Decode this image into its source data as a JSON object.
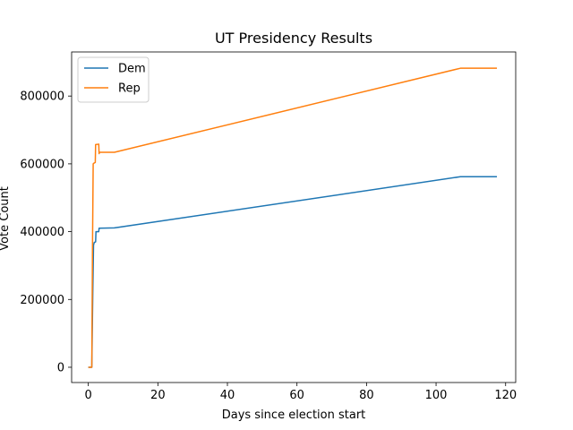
{
  "chart_data": {
    "type": "line",
    "title": "UT Presidency Results",
    "xlabel": "Days since election start",
    "ylabel": "Vote Count",
    "xlim": [
      -4.8,
      122.9
    ],
    "ylim": [
      -45000,
      930000
    ],
    "xticks": [
      0,
      20,
      40,
      60,
      80,
      100,
      120
    ],
    "yticks": [
      0,
      200000,
      400000,
      600000,
      800000
    ],
    "grid": false,
    "legend_position": "upper-left",
    "series": [
      {
        "name": "Dem",
        "color": "#1f77b4",
        "points": [
          [
            0,
            0
          ],
          [
            1,
            0
          ],
          [
            1.3,
            230000
          ],
          [
            1.5,
            360000
          ],
          [
            1.7,
            368000
          ],
          [
            2.1,
            370000
          ],
          [
            2.2,
            400000
          ],
          [
            3.0,
            400000
          ],
          [
            3.1,
            410000
          ],
          [
            7.5,
            411000
          ],
          [
            107,
            562000
          ],
          [
            117.5,
            562000
          ]
        ]
      },
      {
        "name": "Rep",
        "color": "#ff7f0e",
        "points": [
          [
            0,
            0
          ],
          [
            1,
            0
          ],
          [
            1.2,
            350000
          ],
          [
            1.4,
            600000
          ],
          [
            1.6,
            602000
          ],
          [
            2.0,
            604000
          ],
          [
            2.1,
            657000
          ],
          [
            3.0,
            658000
          ],
          [
            3.1,
            630000
          ],
          [
            3.2,
            634000
          ],
          [
            7.5,
            634000
          ],
          [
            107,
            882000
          ],
          [
            117.5,
            882000
          ]
        ]
      }
    ]
  }
}
